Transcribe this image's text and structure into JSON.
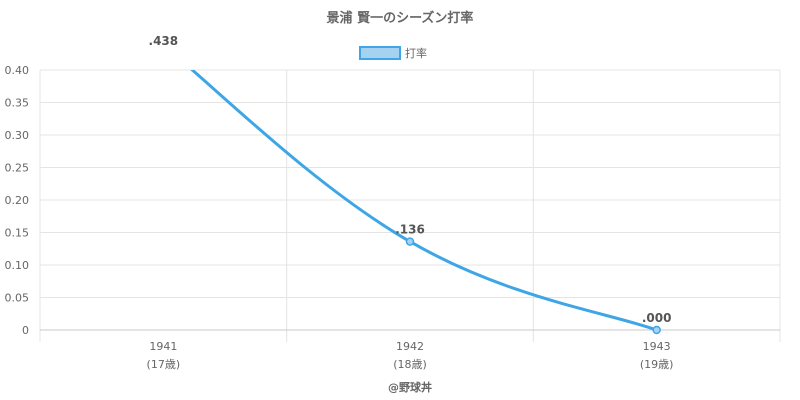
{
  "chart_data": {
    "type": "line",
    "title": "景浦 賢一のシーズン打率",
    "categories": [
      "1941",
      "1942",
      "1943"
    ],
    "age_labels": [
      "(17歳)",
      "(18歳)",
      "(19歳)"
    ],
    "series": [
      {
        "name": "打率",
        "values": [
          0.438,
          0.136,
          0.0
        ],
        "data_labels": [
          ".438",
          ".136",
          ".000"
        ],
        "color": "#3ea6e6",
        "fill_color": "#a6d2f2"
      }
    ],
    "ylim": [
      0,
      0.4
    ],
    "y_ticks": [
      "0",
      "0.05",
      "0.10",
      "0.15",
      "0.20",
      "0.25",
      "0.30",
      "0.35",
      "0.40"
    ],
    "grid": true,
    "legend_position": "top"
  },
  "credit": "@野球丼",
  "colors": {
    "grid": "#e4e4e4",
    "axis": "#c8c8c8",
    "text": "#666666"
  }
}
